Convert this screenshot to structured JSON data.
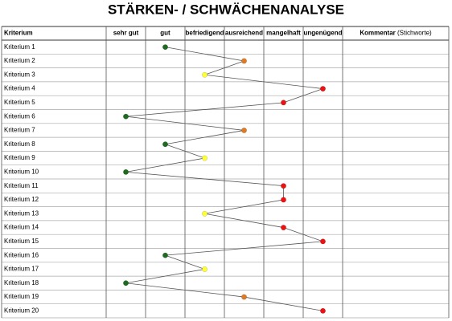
{
  "title": "STÄRKEN- / SCHWÄCHENANALYSE",
  "header": {
    "criterion": "Kriterium",
    "levels": [
      "sehr gut",
      "gut",
      "befriedigend",
      "ausreichend",
      "mangelhaft",
      "ungenügend"
    ],
    "comment": "Kommentar",
    "comment_note": "(Stichworte)"
  },
  "level_colors": [
    "#1d6b1d",
    "#1d6b1d",
    "#ffff33",
    "#e07b24",
    "#ee1111",
    "#ee1111"
  ],
  "rows": [
    {
      "label": "Kriterium 1",
      "rating": 2
    },
    {
      "label": "Kriterium 2",
      "rating": 4
    },
    {
      "label": "Kriterium 3",
      "rating": 3
    },
    {
      "label": "Kriterium 4",
      "rating": 6
    },
    {
      "label": "Kriterium 5",
      "rating": 5
    },
    {
      "label": "Kriterium 6",
      "rating": 1
    },
    {
      "label": "Kriterium 7",
      "rating": 4
    },
    {
      "label": "Kriterium 8",
      "rating": 2
    },
    {
      "label": "Kriterium 9",
      "rating": 3
    },
    {
      "label": "Kriterium 10",
      "rating": 1
    },
    {
      "label": "Kriterium 11",
      "rating": 5
    },
    {
      "label": "Kriterium 12",
      "rating": 5
    },
    {
      "label": "Kriterium 13",
      "rating": 3
    },
    {
      "label": "Kriterium 14",
      "rating": 5
    },
    {
      "label": "Kriterium 15",
      "rating": 6
    },
    {
      "label": "Kriterium 16",
      "rating": 2
    },
    {
      "label": "Kriterium 17",
      "rating": 3
    },
    {
      "label": "Kriterium 18",
      "rating": 1
    },
    {
      "label": "Kriterium 19",
      "rating": 4
    },
    {
      "label": "Kriterium 20",
      "rating": 6
    }
  ]
}
